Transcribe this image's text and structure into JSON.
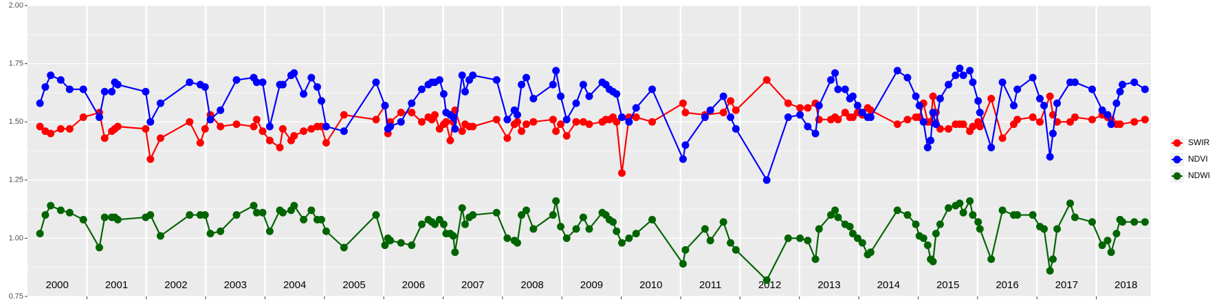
{
  "chart_data": {
    "type": "line",
    "xlim": [
      2000,
      2018.92
    ],
    "ylim": [
      0.75,
      2.0
    ],
    "yticks": [
      0.75,
      {
        "value": 1.0,
        "label": "1.00"
      },
      1.25,
      {
        "value": 1.5,
        "label": "1.50"
      },
      1.75,
      {
        "value": 2.0,
        "label": "2.00"
      }
    ],
    "yminorticks": [
      0.875,
      1.125,
      1.375,
      1.625,
      1.875
    ],
    "xticks": [
      {
        "value": 2000.5,
        "label": "2000"
      },
      {
        "value": 2001.5,
        "label": "2001"
      },
      {
        "value": 2002.5,
        "label": "2002"
      },
      {
        "value": 2003.5,
        "label": "2003"
      },
      {
        "value": 2004.5,
        "label": "2004"
      },
      {
        "value": 2005.5,
        "label": "2005"
      },
      {
        "value": 2006.5,
        "label": "2006"
      },
      {
        "value": 2007.5,
        "label": "2007"
      },
      {
        "value": 2008.5,
        "label": "2008"
      },
      {
        "value": 2009.5,
        "label": "2009"
      },
      {
        "value": 2010.5,
        "label": "2010"
      },
      {
        "value": 2011.5,
        "label": "2011"
      },
      {
        "value": 2012.5,
        "label": "2012"
      },
      {
        "value": 2013.5,
        "label": "2013"
      },
      {
        "value": 2014.5,
        "label": "2014"
      },
      {
        "value": 2015.5,
        "label": "2015"
      },
      {
        "value": 2016.5,
        "label": "2016"
      },
      {
        "value": 2017.5,
        "label": "2017"
      },
      {
        "value": 2018.5,
        "label": "2018"
      }
    ],
    "xgrid": [
      2001,
      2002,
      2003,
      2004,
      2005,
      2006,
      2007,
      2008,
      2009,
      2010,
      2011,
      2012,
      2013,
      2014,
      2015,
      2016,
      2017,
      2018
    ],
    "grid": true,
    "legend": "right",
    "series": [
      {
        "name": "SWIR",
        "color": "#ff0000",
        "x": [
          2000.21,
          2000.3,
          2000.39,
          2000.56,
          2000.71,
          2000.94,
          2001.21,
          2001.3,
          2001.42,
          2001.47,
          2001.52,
          2001.99,
          2002.07,
          2002.24,
          2002.73,
          2002.91,
          2002.99,
          2003.08,
          2003.25,
          2003.52,
          2003.81,
          2003.86,
          2003.96,
          2004.08,
          2004.25,
          2004.3,
          2004.44,
          2004.49,
          2004.65,
          2004.78,
          2004.88,
          2004.95,
          2005.03,
          2005.33,
          2005.87,
          2006.02,
          2006.07,
          2006.11,
          2006.29,
          2006.47,
          2006.64,
          2006.75,
          2006.81,
          2006.86,
          2006.94,
          2007.01,
          2007.05,
          2007.12,
          2007.17,
          2007.2,
          2007.32,
          2007.37,
          2007.44,
          2007.5,
          2007.9,
          2008.08,
          2008.2,
          2008.25,
          2008.32,
          2008.4,
          2008.52,
          2008.85,
          2008.9,
          2008.98,
          2009.08,
          2009.24,
          2009.36,
          2009.46,
          2009.68,
          2009.74,
          2009.8,
          2009.86,
          2009.92,
          2010.01,
          2010.13,
          2010.25,
          2010.52,
          2011.04,
          2011.08,
          2011.41,
          2011.72,
          2011.84,
          2011.93,
          2012.45,
          2012.81,
          2013.01,
          2013.14,
          2013.27,
          2013.33,
          2013.53,
          2013.6,
          2013.65,
          2013.77,
          2013.85,
          2013.9,
          2013.98,
          2014.06,
          2014.15,
          2014.2,
          2014.65,
          2014.82,
          2014.96,
          2015.02,
          2015.09,
          2015.16,
          2015.21,
          2015.25,
          2015.3,
          2015.37,
          2015.51,
          2015.63,
          2015.7,
          2015.76,
          2015.87,
          2015.92,
          2016.01,
          2016.04,
          2016.23,
          2016.42,
          2016.61,
          2016.67,
          2016.93,
          2017.05,
          2017.22,
          2017.27,
          2017.34,
          2017.56,
          2017.64,
          2017.93,
          2018.1,
          2018.19,
          2018.25,
          2018.34,
          2018.4,
          2018.64,
          2018.82
        ],
        "values": [
          1.48,
          1.46,
          1.45,
          1.47,
          1.47,
          1.52,
          1.54,
          1.43,
          1.46,
          1.47,
          1.48,
          1.47,
          1.34,
          1.43,
          1.5,
          1.41,
          1.47,
          1.53,
          1.48,
          1.49,
          1.48,
          1.51,
          1.46,
          1.42,
          1.39,
          1.47,
          1.42,
          1.44,
          1.46,
          1.47,
          1.48,
          1.48,
          1.41,
          1.53,
          1.51,
          1.57,
          1.45,
          1.5,
          1.54,
          1.54,
          1.5,
          1.52,
          1.51,
          1.53,
          1.47,
          1.49,
          1.5,
          1.42,
          1.5,
          1.55,
          1.46,
          1.49,
          1.48,
          1.48,
          1.51,
          1.43,
          1.49,
          1.5,
          1.46,
          1.49,
          1.5,
          1.51,
          1.46,
          1.49,
          1.44,
          1.5,
          1.5,
          1.49,
          1.5,
          1.51,
          1.51,
          1.52,
          1.5,
          1.28,
          1.52,
          1.52,
          1.5,
          1.58,
          1.54,
          1.53,
          1.54,
          1.59,
          1.55,
          1.68,
          1.58,
          1.56,
          1.56,
          1.58,
          1.51,
          1.51,
          1.52,
          1.51,
          1.54,
          1.52,
          1.52,
          1.54,
          1.53,
          1.56,
          1.55,
          1.49,
          1.51,
          1.52,
          1.52,
          1.58,
          1.5,
          1.5,
          1.61,
          1.54,
          1.47,
          1.47,
          1.49,
          1.49,
          1.49,
          1.46,
          1.48,
          1.5,
          1.48,
          1.6,
          1.43,
          1.49,
          1.51,
          1.52,
          1.5,
          1.61,
          1.53,
          1.5,
          1.5,
          1.52,
          1.51,
          1.53,
          1.52,
          1.51,
          1.49,
          1.49,
          1.5,
          1.51
        ]
      },
      {
        "name": "NDVI",
        "color": "#0000ff",
        "x": [
          2000.21,
          2000.3,
          2000.39,
          2000.56,
          2000.71,
          2000.94,
          2001.21,
          2001.3,
          2001.42,
          2001.47,
          2001.52,
          2001.99,
          2002.07,
          2002.24,
          2002.73,
          2002.91,
          2002.99,
          2003.08,
          2003.25,
          2003.52,
          2003.81,
          2003.86,
          2003.96,
          2004.08,
          2004.25,
          2004.3,
          2004.44,
          2004.49,
          2004.65,
          2004.78,
          2004.88,
          2004.95,
          2005.03,
          2005.33,
          2005.87,
          2006.02,
          2006.07,
          2006.11,
          2006.29,
          2006.47,
          2006.64,
          2006.75,
          2006.81,
          2006.86,
          2006.94,
          2007.01,
          2007.05,
          2007.12,
          2007.17,
          2007.2,
          2007.32,
          2007.37,
          2007.44,
          2007.5,
          2007.9,
          2008.08,
          2008.2,
          2008.25,
          2008.32,
          2008.4,
          2008.52,
          2008.85,
          2008.9,
          2008.98,
          2009.08,
          2009.24,
          2009.36,
          2009.46,
          2009.68,
          2009.74,
          2009.8,
          2009.86,
          2009.92,
          2010.01,
          2010.13,
          2010.25,
          2010.52,
          2011.04,
          2011.08,
          2011.41,
          2011.5,
          2011.72,
          2011.84,
          2011.93,
          2012.45,
          2012.81,
          2013.01,
          2013.14,
          2013.27,
          2013.33,
          2013.53,
          2013.6,
          2013.65,
          2013.77,
          2013.85,
          2013.9,
          2013.98,
          2014.06,
          2014.15,
          2014.2,
          2014.65,
          2014.82,
          2014.96,
          2015.02,
          2015.09,
          2015.16,
          2015.21,
          2015.25,
          2015.3,
          2015.37,
          2015.51,
          2015.63,
          2015.7,
          2015.76,
          2015.87,
          2015.92,
          2016.01,
          2016.04,
          2016.23,
          2016.42,
          2016.61,
          2016.67,
          2016.93,
          2017.05,
          2017.12,
          2017.22,
          2017.27,
          2017.34,
          2017.56,
          2017.64,
          2017.93,
          2018.1,
          2018.19,
          2018.25,
          2018.34,
          2018.4,
          2018.44,
          2018.64,
          2018.82
        ],
        "values": [
          1.58,
          1.65,
          1.7,
          1.68,
          1.64,
          1.64,
          1.52,
          1.63,
          1.63,
          1.67,
          1.66,
          1.63,
          1.5,
          1.58,
          1.67,
          1.66,
          1.65,
          1.51,
          1.55,
          1.68,
          1.69,
          1.67,
          1.67,
          1.48,
          1.66,
          1.66,
          1.7,
          1.71,
          1.62,
          1.69,
          1.65,
          1.59,
          1.48,
          1.46,
          1.67,
          1.57,
          1.47,
          1.48,
          1.5,
          1.58,
          1.64,
          1.66,
          1.67,
          1.67,
          1.68,
          1.62,
          1.54,
          1.53,
          1.52,
          1.47,
          1.7,
          1.63,
          1.68,
          1.7,
          1.68,
          1.51,
          1.55,
          1.53,
          1.66,
          1.69,
          1.6,
          1.66,
          1.72,
          1.61,
          1.51,
          1.58,
          1.66,
          1.61,
          1.67,
          1.66,
          1.64,
          1.63,
          1.62,
          1.52,
          1.5,
          1.56,
          1.64,
          1.34,
          1.4,
          1.52,
          1.55,
          1.61,
          1.52,
          1.47,
          1.25,
          1.52,
          1.53,
          1.48,
          1.45,
          1.57,
          1.68,
          1.71,
          1.64,
          1.64,
          1.6,
          1.61,
          1.57,
          1.54,
          1.52,
          1.52,
          1.72,
          1.69,
          1.61,
          1.57,
          1.5,
          1.39,
          1.42,
          1.54,
          1.49,
          1.6,
          1.66,
          1.7,
          1.73,
          1.7,
          1.72,
          1.67,
          1.59,
          1.54,
          1.39,
          1.67,
          1.57,
          1.64,
          1.69,
          1.6,
          1.57,
          1.35,
          1.45,
          1.58,
          1.67,
          1.67,
          1.64,
          1.55,
          1.53,
          1.49,
          1.58,
          1.63,
          1.66,
          1.67,
          1.64
        ]
      },
      {
        "name": "NDWI",
        "color": "#006400",
        "x": [
          2000.21,
          2000.3,
          2000.39,
          2000.56,
          2000.71,
          2000.94,
          2001.21,
          2001.3,
          2001.42,
          2001.47,
          2001.52,
          2001.99,
          2002.07,
          2002.24,
          2002.73,
          2002.91,
          2002.99,
          2003.08,
          2003.25,
          2003.52,
          2003.81,
          2003.86,
          2003.96,
          2004.08,
          2004.25,
          2004.3,
          2004.44,
          2004.49,
          2004.65,
          2004.78,
          2004.88,
          2004.95,
          2005.03,
          2005.33,
          2005.87,
          2006.02,
          2006.07,
          2006.11,
          2006.29,
          2006.47,
          2006.64,
          2006.75,
          2006.81,
          2006.86,
          2006.94,
          2007.01,
          2007.05,
          2007.12,
          2007.17,
          2007.2,
          2007.32,
          2007.37,
          2007.44,
          2007.5,
          2007.9,
          2008.08,
          2008.2,
          2008.25,
          2008.32,
          2008.4,
          2008.52,
          2008.85,
          2008.9,
          2008.98,
          2009.08,
          2009.24,
          2009.36,
          2009.46,
          2009.68,
          2009.74,
          2009.8,
          2009.86,
          2009.92,
          2010.01,
          2010.13,
          2010.25,
          2010.52,
          2011.04,
          2011.08,
          2011.41,
          2011.5,
          2011.72,
          2011.84,
          2011.93,
          2012.45,
          2012.81,
          2013.01,
          2013.14,
          2013.27,
          2013.33,
          2013.53,
          2013.6,
          2013.65,
          2013.77,
          2013.85,
          2013.9,
          2013.98,
          2014.06,
          2014.15,
          2014.2,
          2014.65,
          2014.82,
          2014.96,
          2015.02,
          2015.09,
          2015.16,
          2015.21,
          2015.25,
          2015.3,
          2015.37,
          2015.51,
          2015.63,
          2015.7,
          2015.76,
          2015.87,
          2015.92,
          2016.01,
          2016.04,
          2016.23,
          2016.42,
          2016.61,
          2016.67,
          2016.93,
          2017.05,
          2017.12,
          2017.22,
          2017.27,
          2017.34,
          2017.56,
          2017.64,
          2017.93,
          2018.1,
          2018.19,
          2018.25,
          2018.34,
          2018.4,
          2018.44,
          2018.64,
          2018.82
        ],
        "values": [
          1.02,
          1.1,
          1.14,
          1.12,
          1.11,
          1.08,
          0.96,
          1.09,
          1.09,
          1.09,
          1.08,
          1.09,
          1.1,
          1.01,
          1.1,
          1.1,
          1.1,
          1.02,
          1.03,
          1.1,
          1.14,
          1.11,
          1.11,
          1.03,
          1.12,
          1.11,
          1.12,
          1.14,
          1.08,
          1.12,
          1.08,
          1.08,
          1.03,
          0.96,
          1.1,
          0.97,
          1.0,
          0.99,
          0.98,
          0.97,
          1.06,
          1.08,
          1.07,
          1.06,
          1.08,
          1.06,
          1.02,
          1.02,
          1.01,
          0.94,
          1.13,
          1.06,
          1.09,
          1.1,
          1.11,
          1.0,
          0.99,
          0.98,
          1.1,
          1.12,
          1.04,
          1.1,
          1.16,
          1.05,
          1.0,
          1.04,
          1.09,
          1.04,
          1.11,
          1.1,
          1.08,
          1.07,
          1.03,
          0.98,
          1.0,
          1.02,
          1.08,
          0.89,
          0.95,
          1.04,
          0.99,
          1.07,
          0.98,
          0.95,
          0.82,
          1.0,
          1.0,
          0.99,
          0.91,
          1.04,
          1.1,
          1.12,
          1.09,
          1.06,
          1.05,
          1.02,
          1.0,
          0.98,
          0.93,
          0.94,
          1.12,
          1.1,
          1.06,
          1.01,
          1.0,
          0.97,
          0.91,
          0.9,
          1.02,
          1.06,
          1.13,
          1.14,
          1.15,
          1.11,
          1.16,
          1.1,
          1.07,
          1.04,
          0.91,
          1.12,
          1.1,
          1.1,
          1.1,
          1.05,
          1.04,
          0.86,
          0.91,
          1.04,
          1.15,
          1.09,
          1.07,
          0.97,
          0.99,
          0.94,
          1.02,
          1.08,
          1.07,
          1.07,
          1.07
        ]
      }
    ]
  }
}
